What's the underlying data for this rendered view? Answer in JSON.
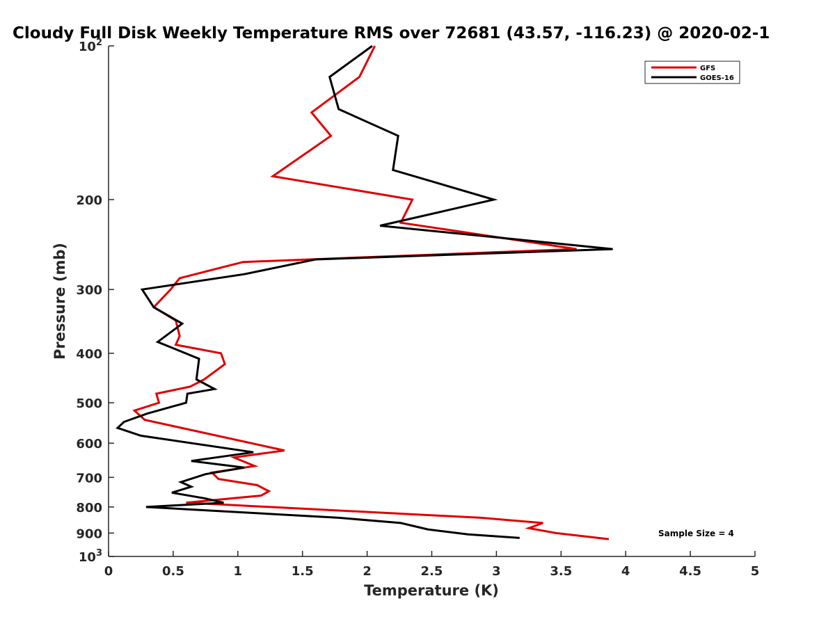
{
  "chart_data": {
    "type": "line",
    "title": "Cloudy Full Disk Weekly Temperature RMS over 72681 (43.57, -116.23) @ 2020-02-1",
    "xlabel": "Temperature (K)",
    "ylabel": "Pressure (mb)",
    "xlim": [
      0,
      5
    ],
    "ylim": [
      100,
      1000
    ],
    "y_scale": "log",
    "y_reversed": true,
    "grid": false,
    "legend_position": "top-right",
    "x_ticks": [
      "0",
      "0.5",
      "1",
      "1.5",
      "2",
      "2.5",
      "3",
      "3.5",
      "4",
      "4.5",
      "5"
    ],
    "y_ticks": [
      {
        "value": 100,
        "base": "10",
        "exp": "2"
      },
      {
        "value": 200,
        "label": "200"
      },
      {
        "value": 300,
        "label": "300"
      },
      {
        "value": 400,
        "label": "400"
      },
      {
        "value": 500,
        "label": "500"
      },
      {
        "value": 600,
        "label": "600"
      },
      {
        "value": 700,
        "label": "700"
      },
      {
        "value": 800,
        "label": "800"
      },
      {
        "value": 900,
        "label": "900"
      },
      {
        "value": 1000,
        "base": "10",
        "exp": "3"
      }
    ],
    "annotation": "Sample Size = 4",
    "series": [
      {
        "name": "GFS",
        "color": "#e00000",
        "points": [
          [
            2.06,
            100
          ],
          [
            1.94,
            115
          ],
          [
            1.57,
            135
          ],
          [
            1.72,
            150
          ],
          [
            1.27,
            180
          ],
          [
            2.35,
            200
          ],
          [
            2.26,
            222
          ],
          [
            3.62,
            250
          ],
          [
            1.04,
            265
          ],
          [
            0.55,
            285
          ],
          [
            0.48,
            300
          ],
          [
            0.35,
            325
          ],
          [
            0.52,
            345
          ],
          [
            0.55,
            370
          ],
          [
            0.52,
            385
          ],
          [
            0.87,
            400
          ],
          [
            0.9,
            420
          ],
          [
            0.74,
            450
          ],
          [
            0.63,
            465
          ],
          [
            0.37,
            480
          ],
          [
            0.39,
            500
          ],
          [
            0.2,
            518
          ],
          [
            0.28,
            540
          ],
          [
            1.36,
            620
          ],
          [
            0.97,
            640
          ],
          [
            1.13,
            665
          ],
          [
            0.8,
            685
          ],
          [
            0.85,
            705
          ],
          [
            1.15,
            725
          ],
          [
            1.24,
            745
          ],
          [
            1.18,
            760
          ],
          [
            0.6,
            785
          ],
          [
            0.83,
            790
          ],
          [
            2.88,
            840
          ],
          [
            3.36,
            860
          ],
          [
            3.25,
            880
          ],
          [
            3.46,
            900
          ],
          [
            3.87,
            925
          ]
        ]
      },
      {
        "name": "GOES-16",
        "color": "#000000",
        "points": [
          [
            2.04,
            100
          ],
          [
            1.71,
            115
          ],
          [
            1.78,
            133
          ],
          [
            2.24,
            150
          ],
          [
            2.2,
            175
          ],
          [
            2.98,
            200
          ],
          [
            2.1,
            225
          ],
          [
            3.9,
            250
          ],
          [
            1.6,
            262
          ],
          [
            1.05,
            280
          ],
          [
            0.26,
            300
          ],
          [
            0.35,
            325
          ],
          [
            0.57,
            350
          ],
          [
            0.38,
            380
          ],
          [
            0.7,
            410
          ],
          [
            0.68,
            450
          ],
          [
            0.82,
            470
          ],
          [
            0.61,
            480
          ],
          [
            0.6,
            500
          ],
          [
            0.3,
            525
          ],
          [
            0.12,
            545
          ],
          [
            0.07,
            560
          ],
          [
            0.25,
            580
          ],
          [
            1.12,
            625
          ],
          [
            0.64,
            650
          ],
          [
            1.05,
            670
          ],
          [
            0.75,
            690
          ],
          [
            0.56,
            715
          ],
          [
            0.64,
            730
          ],
          [
            0.49,
            750
          ],
          [
            0.75,
            770
          ],
          [
            0.89,
            785
          ],
          [
            0.29,
            800
          ],
          [
            1.78,
            840
          ],
          [
            2.26,
            860
          ],
          [
            2.47,
            885
          ],
          [
            2.78,
            905
          ],
          [
            3.18,
            920
          ]
        ]
      }
    ]
  }
}
